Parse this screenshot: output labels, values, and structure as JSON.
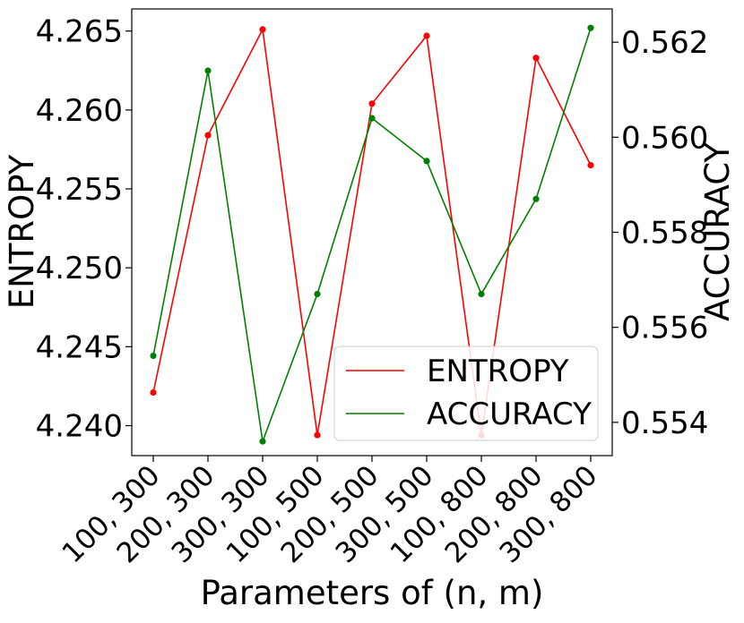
{
  "chart_data": {
    "type": "line",
    "categories": [
      "100, 300",
      "200, 300",
      "300, 300",
      "100, 500",
      "200, 500",
      "300, 500",
      "100, 800",
      "200, 800",
      "300, 800"
    ],
    "xlabel": "Parameters of (n, m)",
    "y_left": {
      "label": "ENTROPY",
      "ylim": [
        4.2381,
        4.2664
      ],
      "ticks": [
        "4.240",
        "4.245",
        "4.250",
        "4.255",
        "4.260",
        "4.265"
      ],
      "tick_values": [
        4.24,
        4.245,
        4.25,
        4.255,
        4.26,
        4.265
      ]
    },
    "y_right": {
      "label": "ACCURACY",
      "ylim": [
        0.5533,
        0.5627
      ],
      "ticks": [
        "0.554",
        "0.556",
        "0.558",
        "0.560",
        "0.562"
      ],
      "tick_values": [
        0.554,
        0.556,
        0.558,
        0.56,
        0.562
      ]
    },
    "series": [
      {
        "name": "ENTROPY",
        "axis": "left",
        "color": "#ff0000",
        "values": [
          4.2421,
          4.2584,
          4.2651,
          4.2394,
          4.2604,
          4.2647,
          4.2394,
          4.2633,
          4.2565
        ]
      },
      {
        "name": "ACCURACY",
        "axis": "right",
        "color": "#008000",
        "values": [
          0.5554,
          0.5614,
          0.5536,
          0.5567,
          0.5604,
          0.5595,
          0.5567,
          0.5587,
          0.5623
        ]
      }
    ],
    "legend": {
      "placement": "lower-right",
      "entries": [
        "ENTROPY",
        "ACCURACY"
      ]
    },
    "grid": false
  }
}
